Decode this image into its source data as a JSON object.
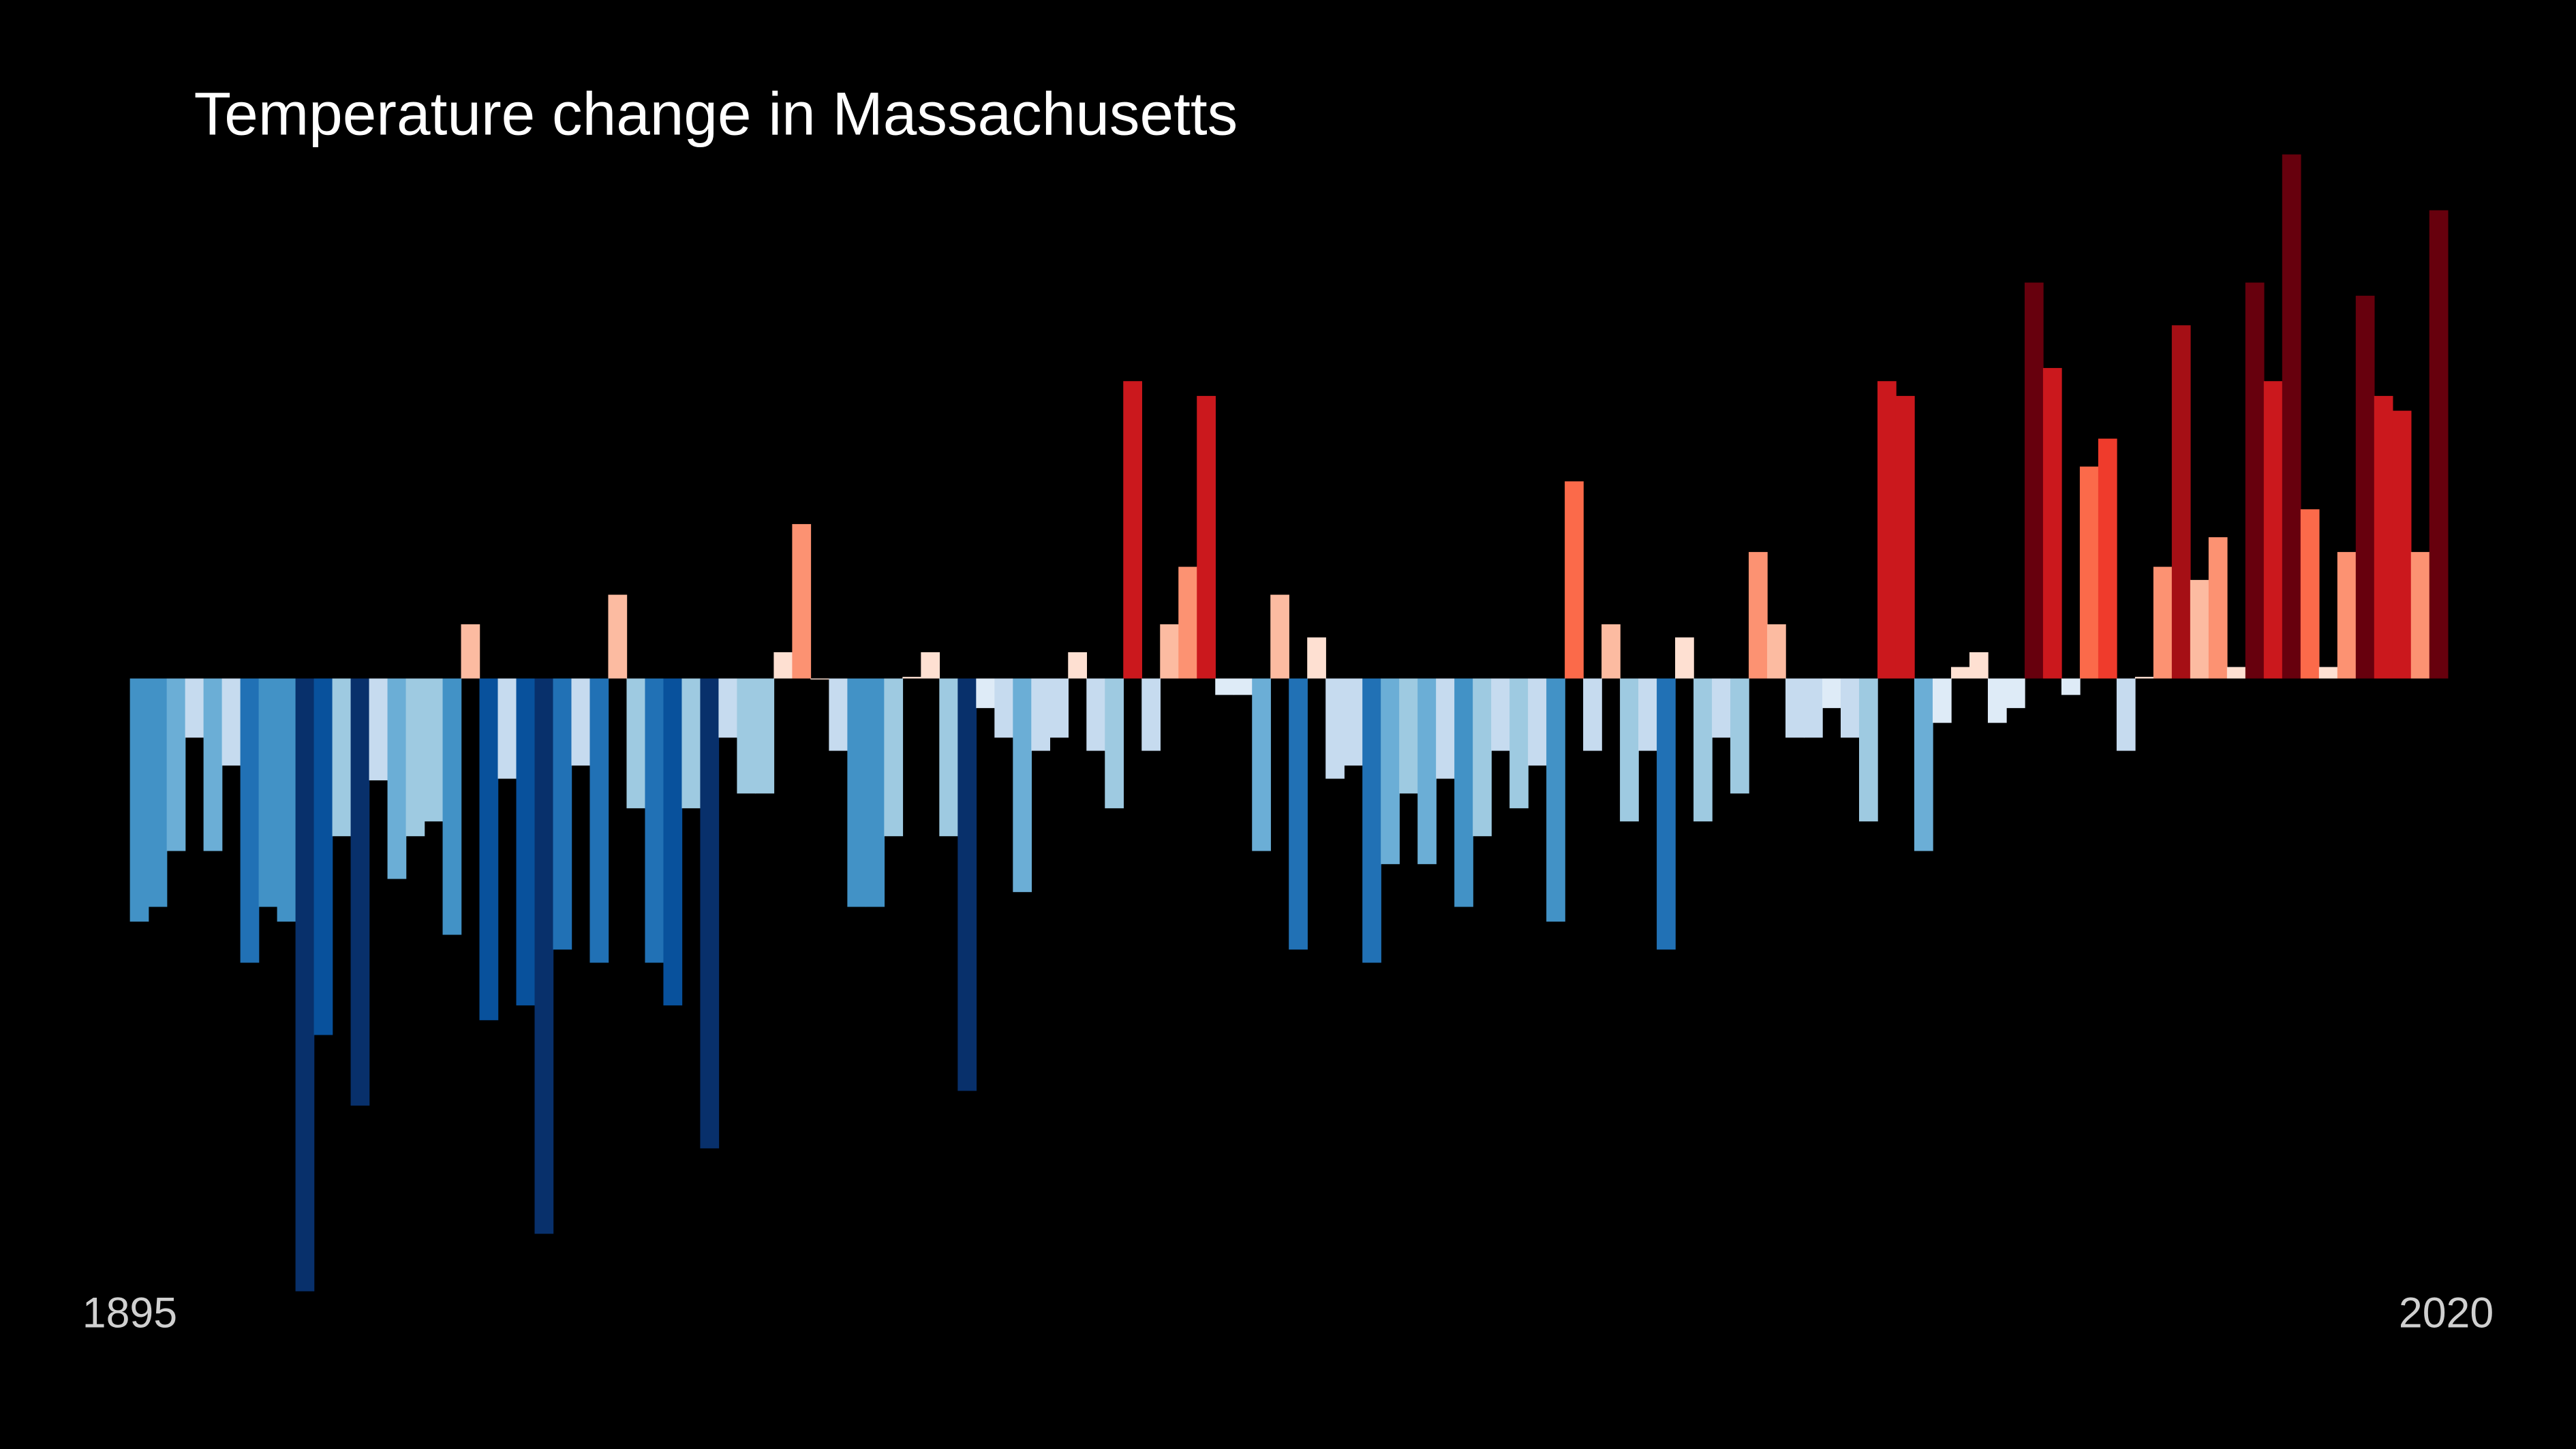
{
  "chart_data": {
    "type": "bar",
    "title": "Temperature change in Massachusetts",
    "categories": [
      "1895",
      null,
      null,
      null,
      null,
      null,
      null,
      null,
      null,
      null,
      null,
      null,
      null,
      null,
      null,
      null,
      null,
      null,
      null,
      null,
      null,
      null,
      null,
      null,
      null,
      null,
      null,
      null,
      null,
      null,
      null,
      null,
      null,
      null,
      null,
      null,
      null,
      null,
      null,
      null,
      null,
      null,
      null,
      null,
      null,
      null,
      null,
      null,
      null,
      null,
      null,
      null,
      null,
      null,
      null,
      null,
      null,
      null,
      null,
      null,
      null,
      null,
      null,
      null,
      null,
      null,
      null,
      null,
      null,
      null,
      null,
      null,
      null,
      null,
      null,
      null,
      null,
      null,
      null,
      null,
      null,
      null,
      null,
      null,
      null,
      null,
      null,
      null,
      null,
      null,
      null,
      null,
      null,
      null,
      null,
      null,
      null,
      null,
      null,
      null,
      null,
      null,
      null,
      null,
      null,
      null,
      null,
      null,
      null,
      null,
      null,
      null,
      null,
      null,
      null,
      null,
      null,
      null,
      null,
      null,
      null,
      null,
      null,
      null,
      null,
      "2020"
    ],
    "values": [
      -1.48,
      -1.39,
      -1.05,
      -0.36,
      -1.05,
      -0.53,
      -1.73,
      -1.39,
      -1.48,
      -3.73,
      -2.17,
      -0.96,
      -2.6,
      -0.62,
      -1.22,
      -0.96,
      -0.87,
      -1.56,
      0.33,
      -2.08,
      -0.61,
      -1.99,
      -3.38,
      -1.65,
      -0.53,
      -1.73,
      0.51,
      -0.79,
      -1.73,
      -1.99,
      -0.79,
      -2.86,
      -0.36,
      -0.7,
      -0.7,
      0.16,
      0.94,
      0,
      -0.44,
      -1.39,
      -1.39,
      -0.96,
      0.01,
      0.16,
      -0.96,
      -2.51,
      -0.18,
      -0.36,
      -1.3,
      -0.44,
      -0.36,
      0.16,
      -0.44,
      -0.79,
      1.81,
      -0.44,
      0.33,
      0.68,
      1.72,
      -0.1,
      -0.1,
      -1.05,
      0.51,
      -1.65,
      0.25,
      -0.61,
      -0.53,
      -1.73,
      -1.13,
      -0.7,
      -1.13,
      -0.61,
      -1.39,
      -0.96,
      -0.44,
      -0.79,
      -0.53,
      -1.48,
      1.2,
      -0.44,
      0.33,
      -0.87,
      -0.44,
      -1.65,
      0.25,
      -0.87,
      -0.36,
      -0.7,
      0.77,
      0.33,
      -0.36,
      -0.36,
      -0.18,
      -0.36,
      -0.87,
      1.81,
      1.72,
      -1.05,
      -0.27,
      0.07,
      0.16,
      -0.27,
      -0.18,
      2.41,
      1.89,
      -0.1,
      1.29,
      1.46,
      -0.44,
      0.01,
      0.68,
      2.15,
      0.6,
      0.86,
      0.07,
      2.41,
      1.81,
      3.19,
      1.03,
      0.07,
      0.77,
      2.33,
      1.72,
      1.63,
      0.77,
      2.85
    ],
    "ylim": [
      -3.73,
      3.73
    ],
    "color_stops": [
      "#08306b",
      "#08519c",
      "#2171b5",
      "#4292c6",
      "#6baed6",
      "#9ecae1",
      "#c6dbef",
      "#deebf7",
      "#fee0d2",
      "#fcbba1",
      "#fc9272",
      "#fb6a4a",
      "#ef3b2c",
      "#cb181d",
      "#a50f15",
      "#67000d"
    ],
    "color_range": [
      -2.6,
      2.6
    ]
  }
}
